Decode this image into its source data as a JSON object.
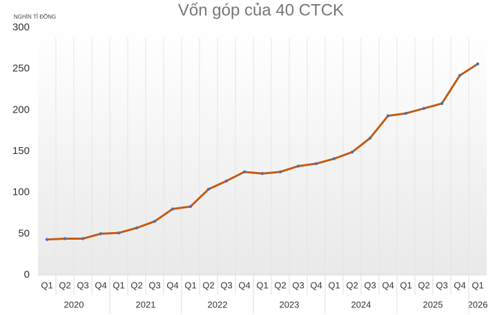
{
  "chart_data": {
    "type": "line",
    "title": "Vốn góp của 40 CTCK",
    "y_label": "NGHÌN TỈ ĐỒNG",
    "groups": [
      {
        "name": "2020",
        "categories": [
          "Q1",
          "Q2",
          "Q3",
          "Q4"
        ]
      },
      {
        "name": "2021",
        "categories": [
          "Q1",
          "Q2",
          "Q3",
          "Q4"
        ]
      },
      {
        "name": "2022",
        "categories": [
          "Q1",
          "Q2",
          "Q3",
          "Q4"
        ]
      },
      {
        "name": "2023",
        "categories": [
          "Q1",
          "Q2",
          "Q3",
          "Q4"
        ]
      },
      {
        "name": "2024",
        "categories": [
          "Q1",
          "Q2",
          "Q3",
          "Q4"
        ]
      },
      {
        "name": "2025",
        "categories": [
          "Q1",
          "Q2",
          "Q3",
          "Q4"
        ]
      },
      {
        "name": "2026",
        "categories": [
          "Q1"
        ]
      }
    ],
    "values": [
      43,
      44,
      44,
      50,
      51,
      57,
      65,
      80,
      83,
      104,
      114,
      125,
      123,
      125,
      132,
      135,
      141,
      149,
      166,
      193,
      196,
      202,
      208,
      242,
      256
    ],
    "color": "#c55a11",
    "marker_color": "#4472c4",
    "ylim": [
      0,
      300
    ],
    "yticks": [
      0,
      50,
      100,
      150,
      200,
      250,
      300
    ],
    "grid": true
  }
}
